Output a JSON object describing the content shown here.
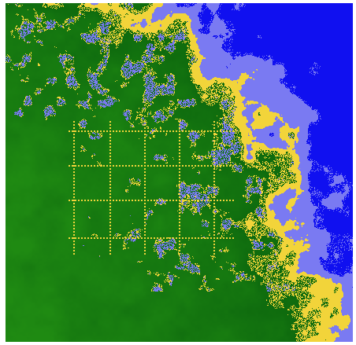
{
  "map": {
    "terrain_types": [
      "deep-water",
      "shallow-water",
      "sand",
      "land"
    ],
    "colors": {
      "deep_water": "#1010F0",
      "shallow_water": "#7A7AF2",
      "sand": "#F2D43A",
      "land_light": "#1F8A12",
      "land_dark": "#0E6A0E",
      "frame": "#FFFFFF"
    }
  }
}
